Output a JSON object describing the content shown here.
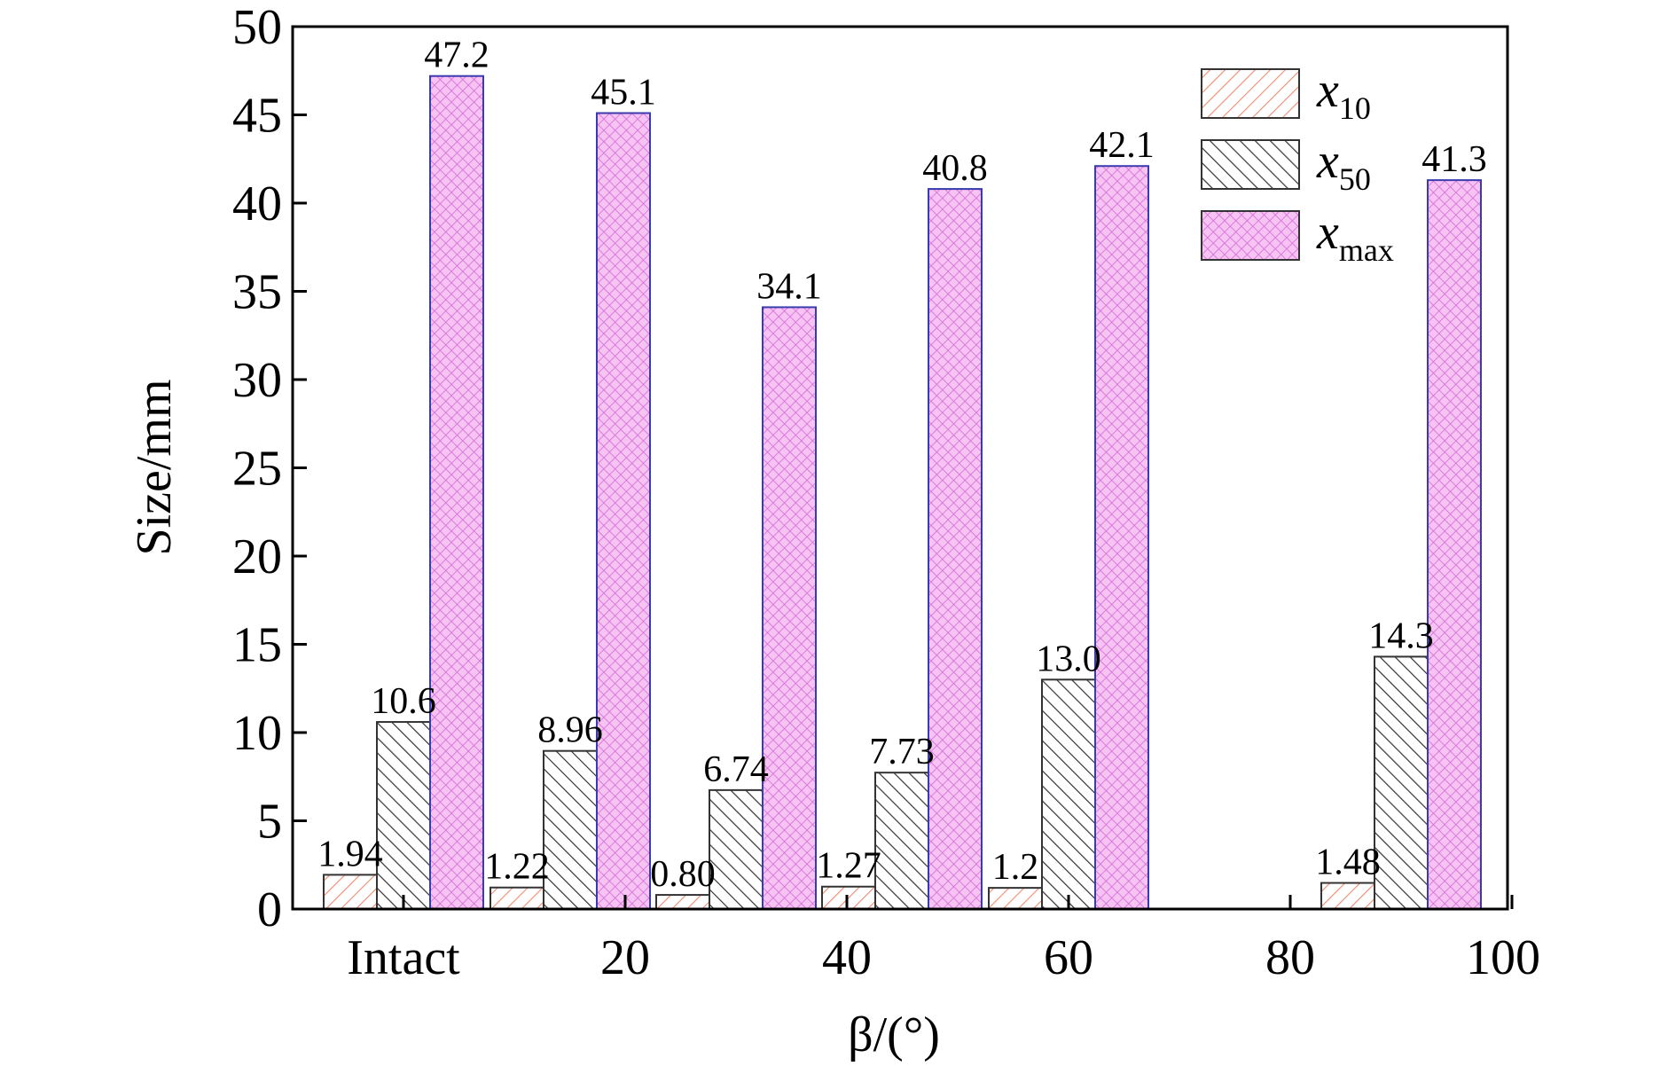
{
  "chart_data": {
    "type": "bar",
    "categories": [
      "Intact",
      "20",
      "40",
      "60",
      "80",
      "100"
    ],
    "series": [
      {
        "base": "x",
        "sub": "10",
        "values": [
          1.94,
          1.22,
          0.8,
          1.27,
          1.2,
          1.48
        ],
        "labels": [
          "1.94",
          "1.22",
          "0.80",
          "1.27",
          "1.2",
          "1.48"
        ],
        "color": "#f4a18a",
        "line": "#e8743b",
        "pattern": "hatch"
      },
      {
        "base": "x",
        "sub": "50",
        "values": [
          10.6,
          8.96,
          6.74,
          7.73,
          13.0,
          14.3
        ],
        "labels": [
          "10.6",
          "8.96",
          "6.74",
          "7.73",
          "13.0",
          "14.3"
        ],
        "color": "#6fc7b8",
        "line": "#222222",
        "pattern": "hatch-back"
      },
      {
        "base": "x",
        "sub": "max",
        "values": [
          47.2,
          45.1,
          34.1,
          40.8,
          42.1,
          41.3
        ],
        "labels": [
          "47.2",
          "45.1",
          "34.1",
          "40.8",
          "42.1",
          "41.3"
        ],
        "color": "#f2b3f0",
        "line": "#3b3bb0",
        "pattern": "crosshatch"
      }
    ],
    "xlabel": "β/(°)",
    "ylabel": "Size/mm",
    "ylim": [
      0,
      50
    ],
    "yticks": [
      0,
      5,
      10,
      15,
      20,
      25,
      30,
      35,
      40,
      45,
      50
    ],
    "legend_position": "top-right",
    "grid": false
  }
}
